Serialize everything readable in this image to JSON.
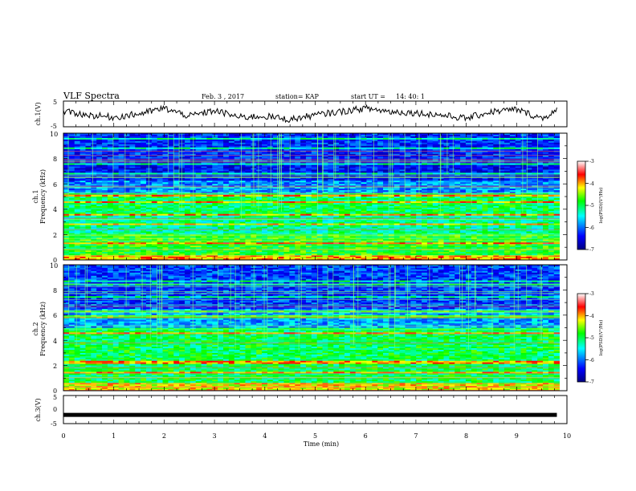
{
  "header": {
    "title": "VLF Spectra",
    "date": "Feb. 3 , 2017",
    "station": "station= KAP",
    "start_label": "start UT =",
    "start_time": "14: 40: 1"
  },
  "colors": {
    "background": "#ffffff",
    "axis": "#000000",
    "colormap": [
      "#000080",
      "#0000ff",
      "#00ffff",
      "#00ff00",
      "#ffff00",
      "#ff0000",
      "#ffffff"
    ]
  },
  "chart_data": [
    {
      "type": "line",
      "id": "ch1_waveform",
      "ylabel": "ch.1(V)",
      "ylim": [
        -5,
        5
      ],
      "yticks": [
        "5",
        "-5"
      ],
      "xlim": [
        0,
        10
      ],
      "x": [
        0,
        0.5,
        1.0,
        1.5,
        2.0,
        2.5,
        3.0,
        3.5,
        4.0,
        4.5,
        5.0,
        5.5,
        6.0,
        6.5,
        7.0,
        7.5,
        8.0,
        8.5,
        9.0,
        9.5,
        9.8
      ],
      "y": [
        1.0,
        -0.5,
        -1.5,
        0.0,
        2.5,
        -1.0,
        1.5,
        -1.5,
        -1.0,
        -2.5,
        -0.5,
        1.0,
        2.5,
        1.0,
        0.5,
        -0.5,
        -2.0,
        1.0,
        2.0,
        -2.0,
        1.5
      ]
    },
    {
      "type": "heatmap",
      "id": "ch1_spectrogram",
      "ylabel": "ch.1",
      "ylabel2": "Frequency (kHz)",
      "ylim": [
        0,
        10
      ],
      "yticks": [
        "0",
        "2",
        "4",
        "6",
        "8",
        "10"
      ],
      "xlim": [
        0,
        10
      ],
      "colorbar": {
        "label": "log(PSD)(V²/Hz)",
        "range": [
          -7,
          -3
        ],
        "ticks": [
          "-3",
          "-4",
          "-5",
          "-6",
          "-7"
        ]
      },
      "bands_khz": [
        {
          "range": [
            0,
            0.4
          ],
          "level": 0.75
        },
        {
          "range": [
            0.4,
            2.0
          ],
          "level": 0.55
        },
        {
          "range": [
            2.0,
            3.5
          ],
          "level": 0.45
        },
        {
          "range": [
            3.5,
            5.2
          ],
          "level": 0.5
        },
        {
          "range": [
            5.2,
            6.2
          ],
          "level": 0.28
        },
        {
          "range": [
            6.2,
            7.5
          ],
          "level": 0.15
        },
        {
          "range": [
            7.5,
            10
          ],
          "level": 0.18
        }
      ]
    },
    {
      "type": "heatmap",
      "id": "ch2_spectrogram",
      "ylabel": "ch.2",
      "ylabel2": "Frequency (kHz)",
      "ylim": [
        0,
        10
      ],
      "yticks": [
        "0",
        "2",
        "4",
        "6",
        "8",
        "10"
      ],
      "xlim": [
        0,
        10
      ],
      "colorbar": {
        "label": "log(PSD)(V²/Hz)",
        "range": [
          -7,
          -3
        ],
        "ticks": [
          "-3",
          "-4",
          "-5",
          "-6",
          "-7"
        ]
      },
      "bands_khz": [
        {
          "range": [
            0,
            0.6
          ],
          "level": 0.7
        },
        {
          "range": [
            0.6,
            2.5
          ],
          "level": 0.5
        },
        {
          "range": [
            2.5,
            5.0
          ],
          "level": 0.5
        },
        {
          "range": [
            5.0,
            6.5
          ],
          "level": 0.3
        },
        {
          "range": [
            6.5,
            10
          ],
          "level": 0.2
        }
      ]
    },
    {
      "type": "line",
      "id": "ch3_waveform",
      "ylabel": "ch.3(V)",
      "ylim": [
        -5,
        5
      ],
      "yticks": [
        "5",
        "0",
        "-5"
      ],
      "xlim": [
        0,
        10
      ],
      "x": [
        0,
        9.8
      ],
      "y": [
        -2,
        -2
      ]
    }
  ],
  "xaxis": {
    "label": "Time (min)",
    "ticks": [
      "0",
      "1",
      "2",
      "3",
      "4",
      "5",
      "6",
      "7",
      "8",
      "9",
      "10"
    ]
  }
}
